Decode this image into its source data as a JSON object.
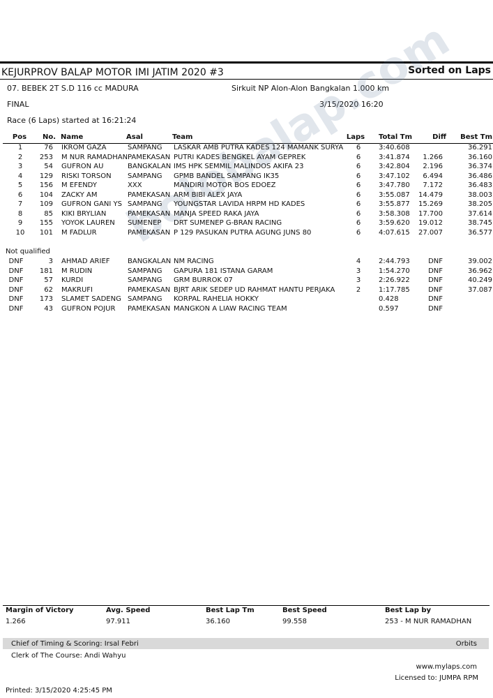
{
  "header": {
    "title": "KEJURPROV BALAP MOTOR IMI JATIM 2020 #3",
    "sort": "Sorted on Laps"
  },
  "event": {
    "class": "07. BEBEK 2T S.D 116 cc MADURA",
    "circuit": "Sirkuit NP Alon-Alon Bangkalan 1.000 km",
    "session": "FINAL",
    "date": "3/15/2020 16:20",
    "race": "Race (6 Laps) started at 16:21:24"
  },
  "table": {
    "columns": [
      "Pos",
      "No.",
      "Name",
      "Asal",
      "Team",
      "Laps",
      "Total Tm",
      "Diff",
      "Best Tm"
    ],
    "rows": [
      [
        "1",
        "76",
        "IKROM GAZA",
        "SAMPANG",
        "LASKAR AMB PUTRA KADES 124 MAMANK SURYA",
        "6",
        "3:40.608",
        null,
        "36.291"
      ],
      [
        "2",
        "253",
        "M NUR RAMADHAN",
        "PAMEKASAN",
        "PUTRI KADES BENGKEL AYAM GEPREK",
        "6",
        "3:41.874",
        "1.266",
        "36.160"
      ],
      [
        "3",
        "54",
        "GUFRON AU",
        "BANGKALAN",
        "IMS HPK SEMMIL MALINDOS AKIFA 23",
        "6",
        "3:42.804",
        "2.196",
        "36.374"
      ],
      [
        "4",
        "129",
        "RISKI TORSON",
        "SAMPANG",
        "GPMB BANDEL SAMPANG IK35",
        "6",
        "3:47.102",
        "6.494",
        "36.486"
      ],
      [
        "5",
        "156",
        "M EFENDY",
        "XXX",
        "MANDIRI MOTOR BOS EDOEZ",
        "6",
        "3:47.780",
        "7.172",
        "36.483"
      ],
      [
        "6",
        "104",
        "ZACKY AM",
        "PAMEKASAN",
        "ARM BIBI ALEX JAYA",
        "6",
        "3:55.087",
        "14.479",
        "38.003"
      ],
      [
        "7",
        "109",
        "GUFRON GANI YS",
        "SAMPANG",
        "YOUNGSTAR LAVIDA HRPM HD KADES",
        "6",
        "3:55.877",
        "15.269",
        "38.205"
      ],
      [
        "8",
        "85",
        "KIKI BRYLIAN",
        "PAMEKASAN",
        "MANJA SPEED RAKA JAYA",
        "6",
        "3:58.308",
        "17.700",
        "37.614"
      ],
      [
        "9",
        "155",
        "YOYOK LAUREN",
        "SUMENEP",
        "DRT SUMENEP G-BRAN RACING",
        "6",
        "3:59.620",
        "19.012",
        "38.745"
      ],
      [
        "10",
        "101",
        "M FADLUR",
        "PAMEKASAN",
        "P 129 PASUKAN PUTRA AGUNG JUNS 80",
        "6",
        "4:07.615",
        "27.007",
        "36.577"
      ]
    ],
    "not_qualified_label": "Not qualified",
    "not_qualified": [
      [
        "DNF",
        "3",
        "AHMAD ARIEF",
        "BANGKALAN",
        "NM RACING",
        "4",
        "2:44.793",
        "DNF",
        "39.002"
      ],
      [
        "DNF",
        "181",
        "M RUDIN",
        "SAMPANG",
        "GAPURA 181 ISTANA GARAM",
        "3",
        "1:54.270",
        "DNF",
        "36.962"
      ],
      [
        "DNF",
        "57",
        "KURDI",
        "SAMPANG",
        "GRM BURROK 07",
        "3",
        "2:26.922",
        "DNF",
        "40.249"
      ],
      [
        "DNF",
        "62",
        "MAKRUFI",
        "PAMEKASAN",
        "BJRT ARIK SEDEP UD RAHMAT HANTU PERJAKA",
        "2",
        "1:17.785",
        "DNF",
        "37.087"
      ],
      [
        "DNF",
        "173",
        "SLAMET SADENG",
        "SAMPANG",
        "KORPAL RAHELIA HOKKY",
        null,
        "0.428",
        "DNF",
        null
      ],
      [
        "DNF",
        "43",
        "GUFRON POJUR",
        "PAMEKASAN",
        "MANGKON A LIAW RACING TEAM",
        null,
        "0.597",
        "DNF",
        null
      ]
    ]
  },
  "summary": {
    "labels": [
      "Margin of Victory",
      "Avg. Speed",
      "Best Lap Tm",
      "Best Speed",
      "Best Lap by"
    ],
    "values": [
      "1.266",
      "97.911",
      "36.160",
      "99.558",
      "253 - M NUR RAMADHAN"
    ]
  },
  "footer": {
    "chief": "Chief of Timing & Scoring: Irsal Febri",
    "brand": "Orbits",
    "clerk": "Clerk of The Course: Andi Wahyu",
    "website": "www.mylaps.com",
    "license": "Licensed to:  JUMPA RPM",
    "printed": "Printed: 3/15/2020 4:25:45 PM"
  },
  "watermark": "bolobalap.com"
}
